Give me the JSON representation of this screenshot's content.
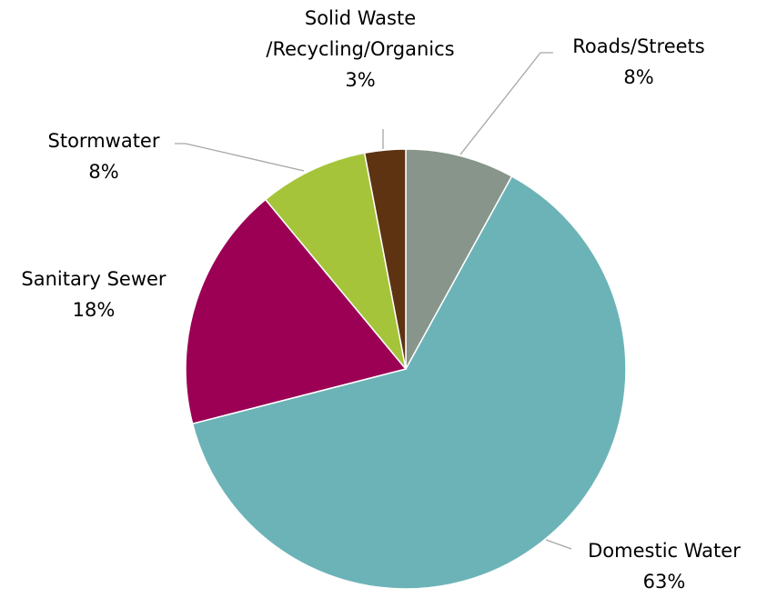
{
  "chart_data": {
    "type": "pie",
    "title": "",
    "start_angle_deg": 0,
    "direction": "clockwise",
    "legend": "none",
    "slices": [
      {
        "label": "Roads/Streets",
        "label_lines": [
          "Roads/Streets"
        ],
        "value": 8,
        "display_value": "8%",
        "color": "#87958b",
        "label_side": "right"
      },
      {
        "label": "Domestic Water",
        "label_lines": [
          "Domestic Water"
        ],
        "value": 63,
        "display_value": "63%",
        "color": "#6cb3b8",
        "label_side": "right"
      },
      {
        "label": "Sanitary Sewer",
        "label_lines": [
          "Sanitary Sewer"
        ],
        "value": 18,
        "display_value": "18%",
        "color": "#9b0055",
        "label_side": "left"
      },
      {
        "label": "Stormwater",
        "label_lines": [
          "Stormwater"
        ],
        "value": 8,
        "display_value": "8%",
        "color": "#a5c43a",
        "label_side": "left"
      },
      {
        "label": "Solid Waste /Recycling/Organics",
        "label_lines": [
          "Solid Waste",
          "/Recycling/Organics"
        ],
        "value": 3,
        "display_value": "3%",
        "color": "#5e3312",
        "label_side": "top"
      }
    ]
  }
}
